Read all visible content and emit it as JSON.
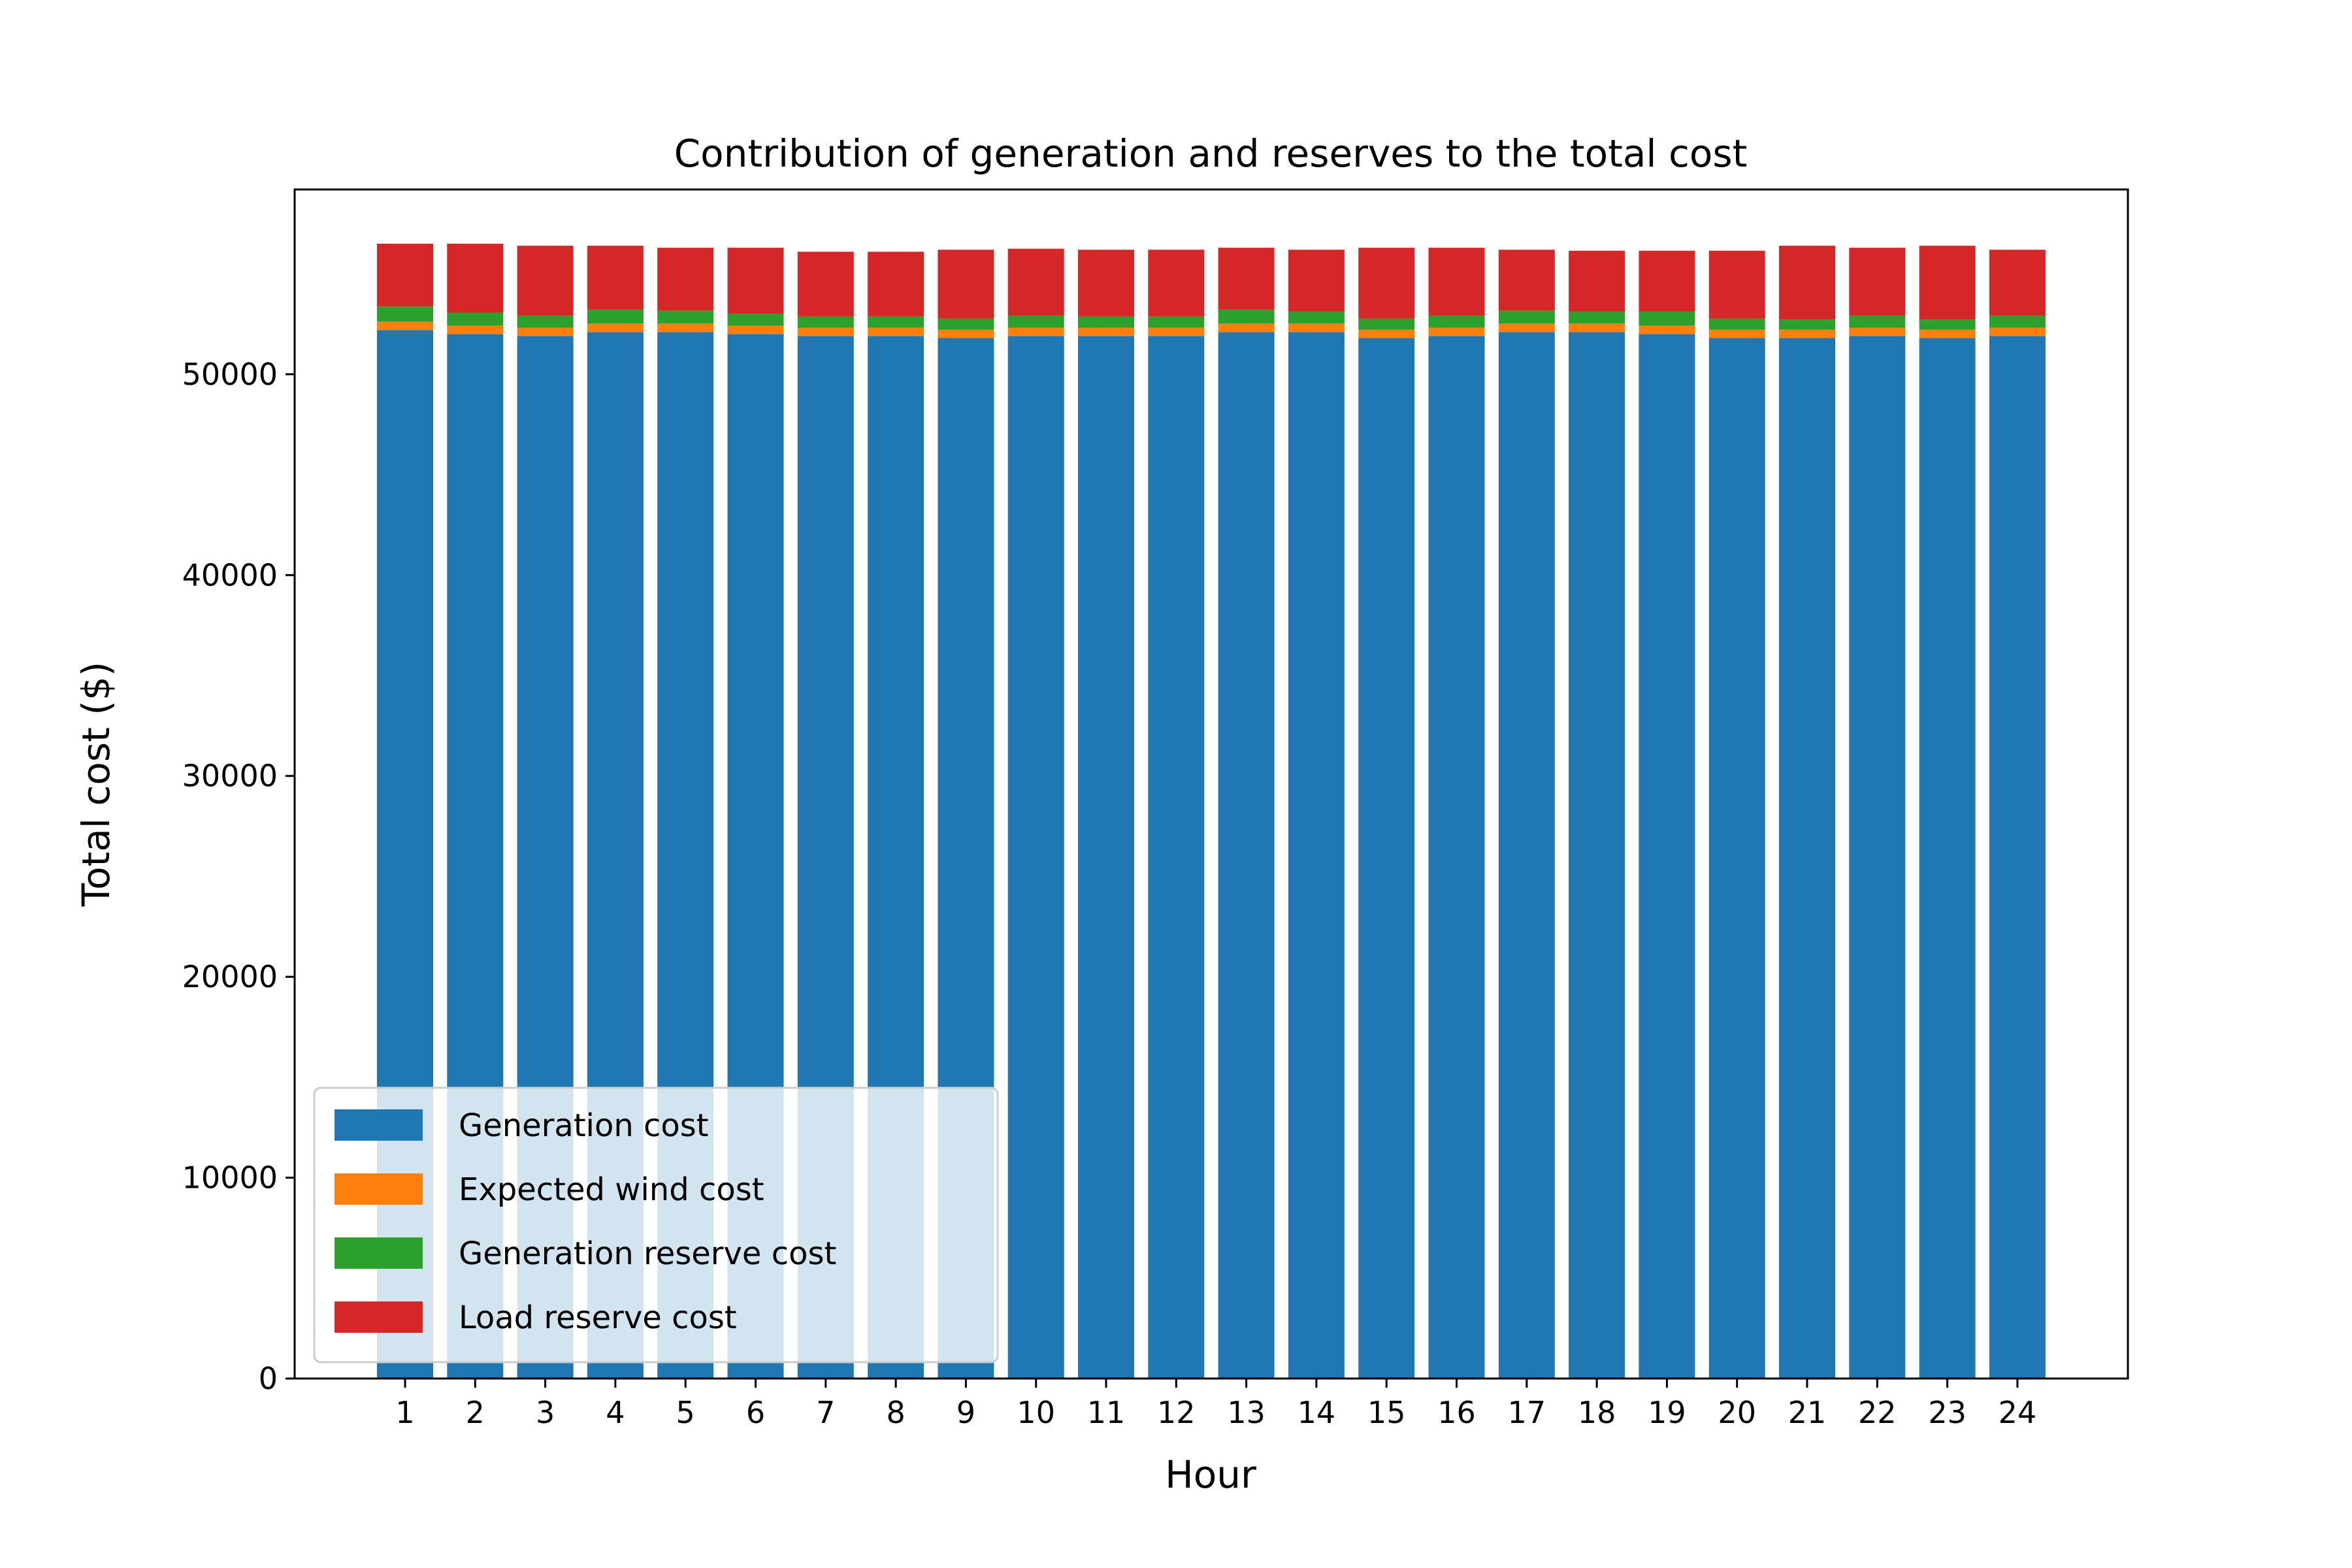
{
  "chart_data": {
    "type": "bar",
    "stacked": true,
    "title": "Contribution of generation and reserves to the total cost",
    "xlabel": "Hour",
    "ylabel": "Total cost ($)",
    "ylim": [
      0,
      59200
    ],
    "yticks": [
      0,
      10000,
      20000,
      30000,
      40000,
      50000
    ],
    "grid": false,
    "legend_position": "lower-left",
    "categories": [
      "1",
      "2",
      "3",
      "4",
      "5",
      "6",
      "7",
      "8",
      "9",
      "10",
      "11",
      "12",
      "13",
      "14",
      "15",
      "16",
      "17",
      "18",
      "19",
      "20",
      "21",
      "22",
      "23",
      "24"
    ],
    "series": [
      {
        "name": "Generation cost",
        "color": "#1f77b4",
        "values": [
          52200,
          52000,
          51900,
          52100,
          52100,
          52000,
          51900,
          51900,
          51800,
          51900,
          51900,
          51900,
          52100,
          52100,
          51800,
          51900,
          52100,
          52100,
          52000,
          51800,
          51800,
          51900,
          51800,
          51900
        ]
      },
      {
        "name": "Expected wind cost",
        "color": "#ff7f0e",
        "values": [
          420,
          420,
          420,
          420,
          420,
          420,
          420,
          420,
          420,
          420,
          420,
          420,
          420,
          420,
          420,
          420,
          420,
          420,
          420,
          420,
          420,
          420,
          420,
          420
        ]
      },
      {
        "name": "Generation reserve cost",
        "color": "#2ca02c",
        "values": [
          750,
          650,
          600,
          700,
          650,
          600,
          550,
          550,
          550,
          600,
          550,
          550,
          700,
          600,
          550,
          600,
          650,
          600,
          700,
          550,
          500,
          600,
          500,
          600
        ]
      },
      {
        "name": "Load reserve cost",
        "color": "#d62728",
        "values": [
          3130,
          3430,
          3480,
          3180,
          3130,
          3280,
          3230,
          3230,
          3430,
          3330,
          3330,
          3330,
          3080,
          3080,
          3530,
          3380,
          3030,
          3030,
          3030,
          3380,
          3680,
          3380,
          3680,
          3280
        ]
      }
    ]
  }
}
